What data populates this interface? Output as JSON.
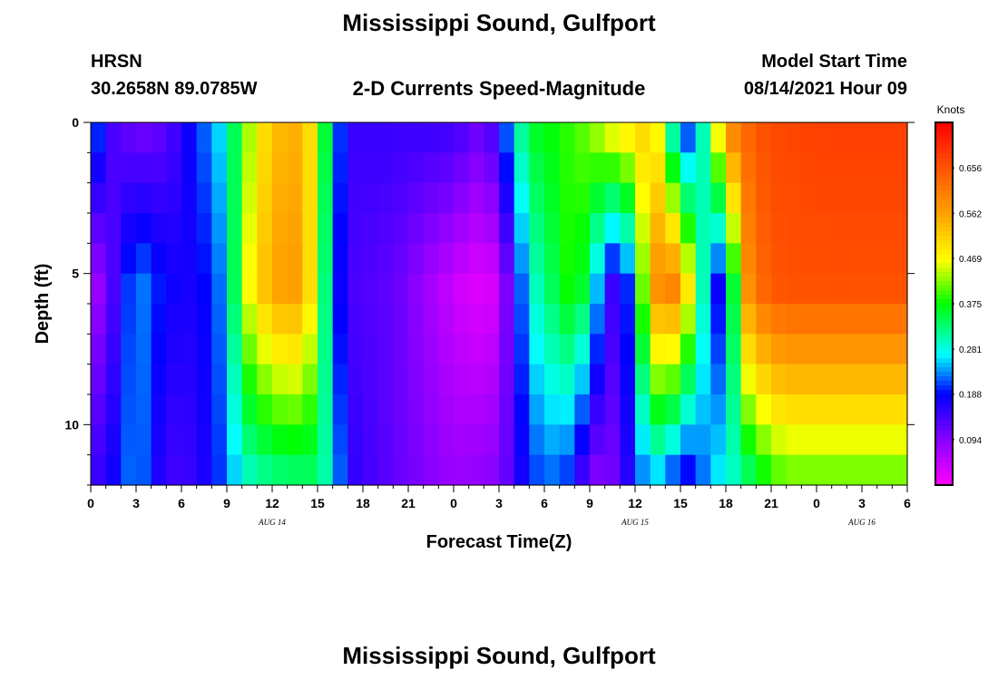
{
  "header": {
    "title": "Mississippi Sound, Gulfport",
    "station": "HRSN",
    "coords": "30.2658N  89.0785W",
    "subtitle": "2-D Currents Speed-Magnitude",
    "model_start_label": "Model Start Time",
    "model_start_value": "08/14/2021 Hour 09"
  },
  "footer": {
    "title": "Mississippi Sound, Gulfport"
  },
  "chart_data": {
    "type": "heatmap",
    "xlabel": "Forecast Time(Z)",
    "ylabel": "Depth (ft)",
    "x_ticks": [
      "0",
      "3",
      "6",
      "9",
      "12",
      "15",
      "18",
      "21",
      "0",
      "3",
      "6",
      "9",
      "12",
      "15",
      "18",
      "21",
      "0",
      "3",
      "6"
    ],
    "x_range_hours": [
      0,
      54
    ],
    "date_labels": [
      {
        "text": "AUG  14",
        "hour": 12
      },
      {
        "text": "AUG  15",
        "hour": 36
      },
      {
        "text": "AUG  16",
        "hour": 51
      }
    ],
    "y_ticks": [
      0,
      5,
      10
    ],
    "y_range_ft": [
      0,
      12
    ],
    "y_inverted": true,
    "colorbar": {
      "title": "Knots",
      "ticks": [
        "0.656",
        "0.562",
        "0.469",
        "0.375",
        "0.281",
        "0.188",
        "0.094"
      ],
      "tick_values": [
        0.656,
        0.562,
        0.469,
        0.375,
        0.281,
        0.188,
        0.094
      ],
      "range": [
        0.0,
        0.75
      ]
    },
    "grid": false,
    "legend": "colorbar right",
    "speed_profiles": {
      "hours": [
        0,
        1,
        3,
        5,
        7,
        9,
        10,
        12,
        14,
        15,
        16,
        17,
        20,
        24,
        26,
        27,
        28,
        29,
        31,
        32,
        33,
        34,
        35,
        36,
        37,
        38,
        39,
        40,
        41,
        42,
        43,
        44,
        45,
        46,
        48,
        50,
        52,
        54
      ],
      "surface": [
        0.27,
        0.15,
        0.1,
        0.12,
        0.2,
        0.28,
        0.4,
        0.53,
        0.55,
        0.45,
        0.26,
        0.15,
        0.15,
        0.15,
        0.11,
        0.17,
        0.28,
        0.36,
        0.38,
        0.4,
        0.42,
        0.47,
        0.5,
        0.5,
        0.52,
        0.4,
        0.16,
        0.22,
        0.38,
        0.6,
        0.62,
        0.65,
        0.67,
        0.67,
        0.68,
        0.68,
        0.68,
        0.68
      ],
      "bottom": [
        0.15,
        0.16,
        0.24,
        0.14,
        0.15,
        0.22,
        0.28,
        0.31,
        0.32,
        0.33,
        0.28,
        0.16,
        0.12,
        0.08,
        0.09,
        0.1,
        0.14,
        0.2,
        0.22,
        0.17,
        0.09,
        0.09,
        0.12,
        0.2,
        0.24,
        0.23,
        0.15,
        0.18,
        0.26,
        0.28,
        0.3,
        0.34,
        0.38,
        0.4,
        0.4,
        0.4,
        0.4,
        0.4
      ],
      "mid_peak": [
        0.06,
        0.1,
        0.24,
        0.18,
        0.17,
        0.24,
        0.44,
        0.56,
        0.57,
        0.43,
        0.22,
        0.14,
        0.12,
        0.04,
        0.02,
        0.04,
        0.16,
        0.28,
        0.36,
        0.4,
        0.32,
        0.18,
        0.12,
        0.28,
        0.55,
        0.62,
        0.58,
        0.4,
        0.2,
        0.16,
        0.55,
        0.62,
        0.65,
        0.66,
        0.66,
        0.66,
        0.66,
        0.66
      ]
    }
  }
}
